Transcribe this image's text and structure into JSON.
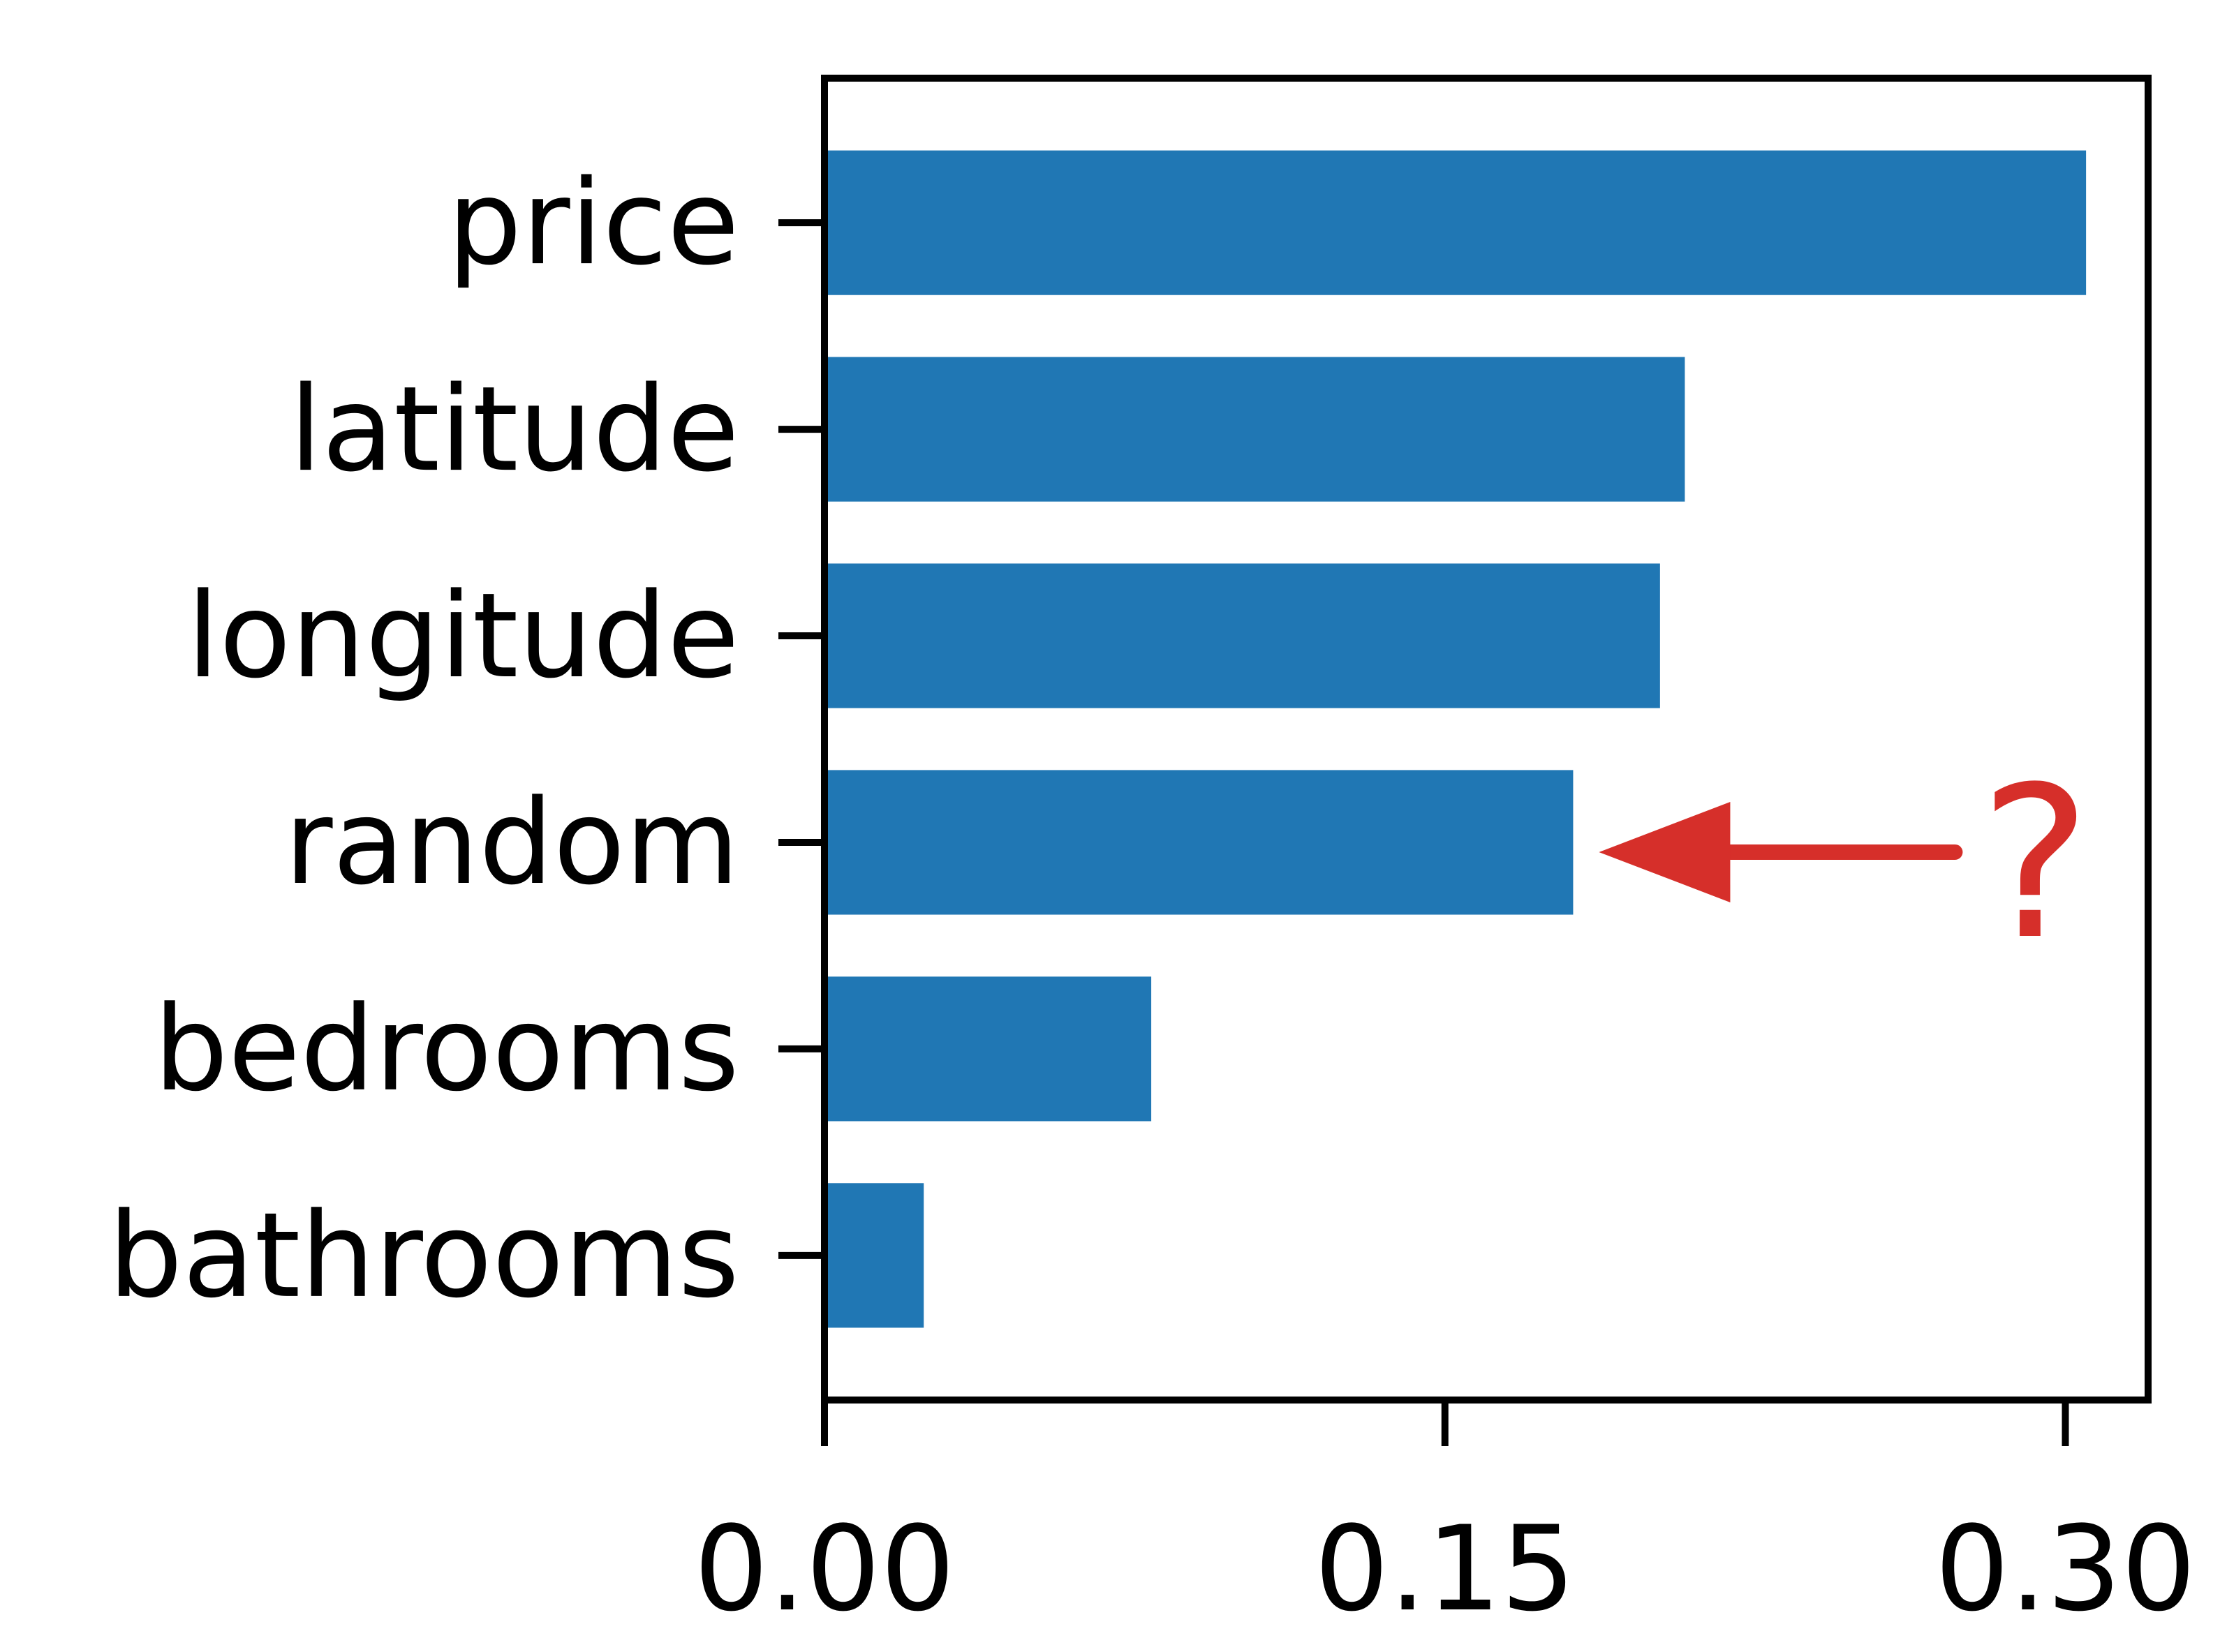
{
  "chart_data": {
    "type": "bar",
    "orientation": "horizontal",
    "categories": [
      "price",
      "latitude",
      "longitude",
      "random",
      "bedrooms",
      "bathrooms"
    ],
    "values": [
      0.305,
      0.208,
      0.202,
      0.181,
      0.079,
      0.024
    ],
    "xlim": [
      0,
      0.32
    ],
    "xticks": [
      0,
      0.15,
      0.3
    ],
    "xtick_labels": [
      "0.00",
      "0.15",
      "0.30"
    ],
    "title": "",
    "xlabel": "",
    "ylabel": "",
    "grid": false,
    "legend": "none",
    "bar_color": "#2077b4",
    "annotation": {
      "text": "?",
      "target": "random",
      "color": "#d62f2a"
    }
  }
}
